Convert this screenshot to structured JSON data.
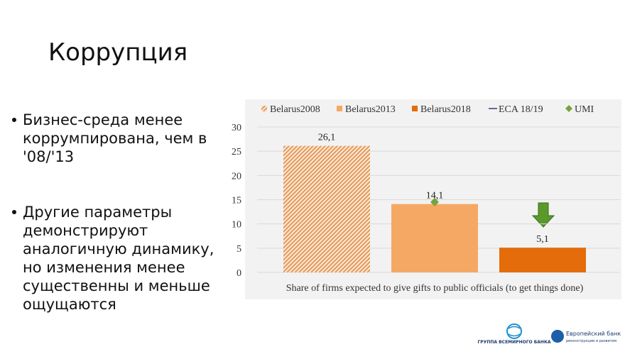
{
  "slide": {
    "title": "Коррупция",
    "bullets": [
      [
        "Бизнес-среда менее",
        "коррумпирована, чем в",
        "'08/'13"
      ],
      [
        "Другие параметры",
        "демонстрируют",
        "аналогичную динамику,",
        "но изменения менее",
        "существенны и меньше",
        "ощущаются"
      ]
    ],
    "logos": [
      "ГРУППА ВСЕМИРНОГО БАНКА",
      "Европейский банк",
      "реконструкции и развития"
    ]
  },
  "chart_data": {
    "type": "bar",
    "categories": [
      "Share of firms expected to give gifts to public officials (to get things done)"
    ],
    "series": [
      {
        "name": "Belarus2008",
        "color": "#e8a063",
        "hatch": true,
        "values": [
          26.1
        ],
        "value_labels": [
          "26,1"
        ]
      },
      {
        "name": "Belarus2013",
        "color": "#f5a864",
        "values": [
          14.1
        ],
        "value_labels": [
          "14,1"
        ]
      },
      {
        "name": "Belarus2018",
        "color": "#e46c0a",
        "values": [
          5.1
        ],
        "value_labels": [
          "5,1"
        ]
      },
      {
        "name": "ECA 18/19",
        "color": "#7060a0",
        "kind": "line",
        "values": [
          null
        ]
      },
      {
        "name": "UMI",
        "color": "#77a33c",
        "kind": "marker",
        "values": [
          14.5
        ]
      }
    ],
    "ylim": [
      0,
      30
    ],
    "yticks": [
      0,
      5,
      10,
      15,
      20,
      25,
      30
    ],
    "grid": true,
    "legend": "top"
  }
}
